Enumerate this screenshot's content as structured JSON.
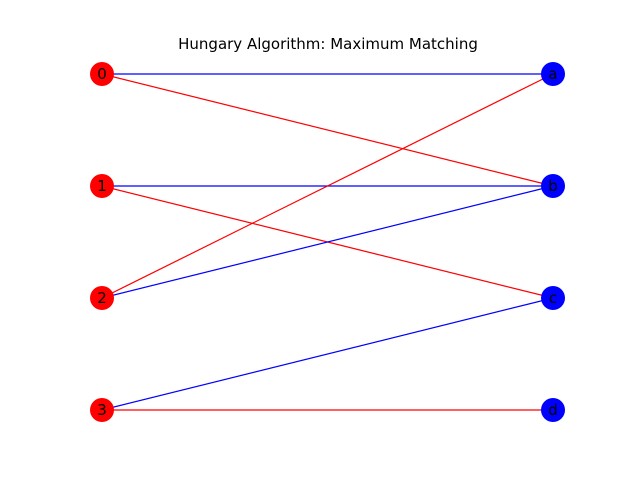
{
  "title": "Hungary Algorithm: Maximum Matching",
  "colors": {
    "left_node": "#ff0000",
    "right_node": "#0000ff",
    "matching_edge": "#0000ff",
    "other_edge": "#ff0000"
  },
  "graph": {
    "left_nodes": [
      "0",
      "1",
      "2",
      "3"
    ],
    "right_nodes": [
      "a",
      "b",
      "c",
      "d"
    ],
    "edges": [
      {
        "from": "0",
        "to": "a",
        "matched": true
      },
      {
        "from": "0",
        "to": "b",
        "matched": false
      },
      {
        "from": "1",
        "to": "b",
        "matched": true
      },
      {
        "from": "1",
        "to": "c",
        "matched": false
      },
      {
        "from": "2",
        "to": "a",
        "matched": false
      },
      {
        "from": "2",
        "to": "b",
        "matched": true
      },
      {
        "from": "3",
        "to": "c",
        "matched": true
      },
      {
        "from": "3",
        "to": "d",
        "matched": false
      }
    ]
  }
}
